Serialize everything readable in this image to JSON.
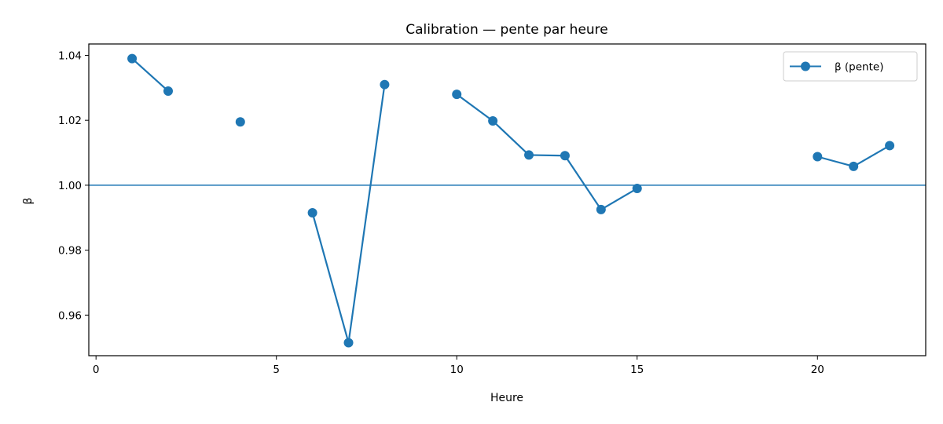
{
  "chart_data": {
    "type": "line",
    "title": "Calibration — pente par heure",
    "xlabel": "Heure",
    "ylabel": "β",
    "xlim": [
      -0.2,
      23
    ],
    "ylim": [
      0.9475,
      1.0435
    ],
    "xticks": [
      0,
      5,
      10,
      15,
      20
    ],
    "yticks": [
      0.96,
      0.98,
      1.0,
      1.02,
      1.04
    ],
    "ytick_labels": [
      "0.96",
      "0.98",
      "1.00",
      "1.02",
      "1.04"
    ],
    "xtick_labels": [
      "0",
      "5",
      "10",
      "15",
      "20"
    ],
    "grid": false,
    "legend_position": "top-right",
    "reference_line": {
      "y": 1.0,
      "color": "#1f77b4"
    },
    "series": [
      {
        "name": "β (pente)",
        "color": "#1f77b4",
        "x": [
          1,
          2,
          4,
          6,
          7,
          8,
          10,
          11,
          12,
          13,
          14,
          15,
          20,
          21,
          22
        ],
        "y": [
          1.039,
          1.029,
          1.0195,
          0.9915,
          0.9515,
          1.031,
          1.028,
          1.0198,
          1.0093,
          1.0091,
          0.9925,
          0.999,
          1.0088,
          1.0058,
          1.0122
        ],
        "segments": [
          [
            1,
            2
          ],
          [
            4
          ],
          [
            6,
            7,
            8
          ],
          [
            10,
            11,
            12,
            13,
            14,
            15
          ],
          [
            20,
            21,
            22
          ]
        ]
      }
    ]
  }
}
